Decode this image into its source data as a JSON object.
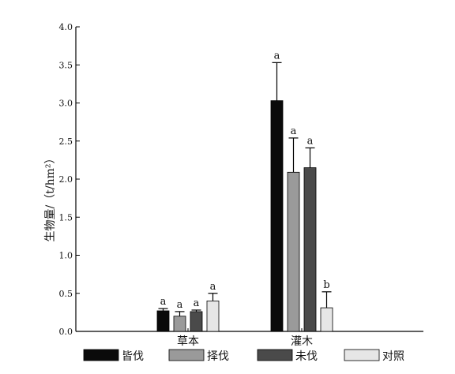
{
  "chart_data": {
    "type": "bar",
    "title": "",
    "xlabel": "",
    "ylabel": "生物量/（t/hm²）",
    "ylim": [
      0,
      4.0
    ],
    "yticks": [
      "0.0",
      "0.5",
      "1.0",
      "1.5",
      "2.0",
      "2.5",
      "3.0",
      "3.5",
      "4.0"
    ],
    "categories": [
      "草本",
      "灌木"
    ],
    "series": [
      {
        "name": "皆伐",
        "color": "#0a0a0a",
        "values": [
          0.27,
          3.03
        ],
        "errors": [
          0.03,
          0.5
        ],
        "labels": [
          "a",
          "a"
        ]
      },
      {
        "name": "择伐",
        "color": "#9a9a9a",
        "values": [
          0.2,
          2.09
        ],
        "errors": [
          0.06,
          0.45
        ],
        "labels": [
          "a",
          "a"
        ]
      },
      {
        "name": "未伐",
        "color": "#4a4a4a",
        "values": [
          0.26,
          2.15
        ],
        "errors": [
          0.02,
          0.26
        ],
        "labels": [
          "a",
          "a"
        ]
      },
      {
        "name": "对照",
        "color": "#e6e6e6",
        "values": [
          0.4,
          0.31
        ],
        "errors": [
          0.1,
          0.21
        ],
        "labels": [
          "a",
          "b"
        ]
      }
    ],
    "grid": false,
    "legend": "bottom"
  }
}
